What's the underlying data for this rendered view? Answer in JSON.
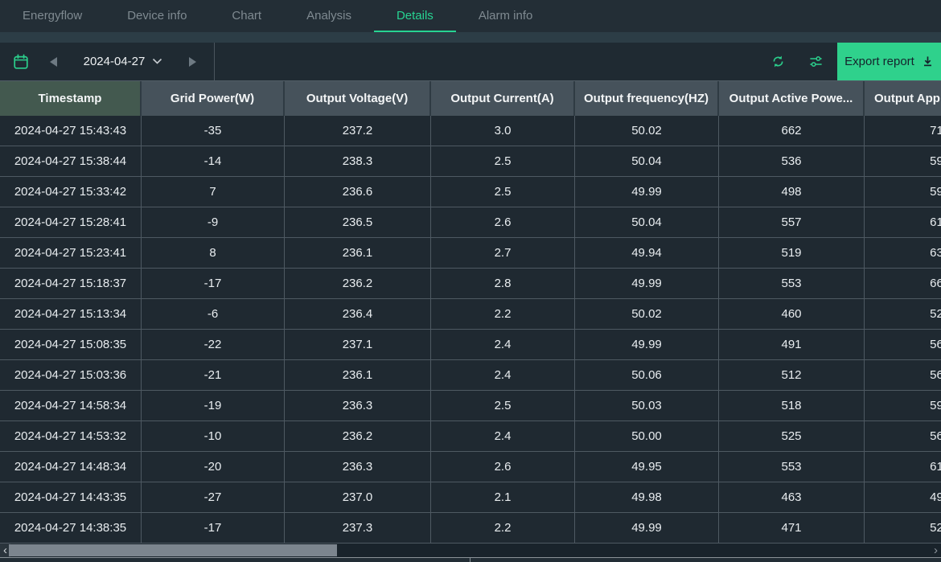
{
  "nav": {
    "tabs": [
      {
        "label": "Energyflow",
        "active": false
      },
      {
        "label": "Device info",
        "active": false
      },
      {
        "label": "Chart",
        "active": false
      },
      {
        "label": "Analysis",
        "active": false
      },
      {
        "label": "Details",
        "active": true
      },
      {
        "label": "Alarm info",
        "active": false
      }
    ]
  },
  "toolbar": {
    "date": "2024-04-27",
    "export_label": "Export report",
    "icons": [
      "calendar-icon",
      "previous-day-arrow",
      "chevron-down-icon",
      "next-day-arrow",
      "refresh-icon",
      "filter-icon",
      "download-icon"
    ]
  },
  "table": {
    "columns": [
      "Timestamp",
      "Grid Power(W)",
      "Output Voltage(V)",
      "Output Current(A)",
      "Output frequency(HZ)",
      "Output Active Powe...",
      "Output App"
    ],
    "rows": [
      [
        "2024-04-27 15:43:43",
        "-35",
        "237.2",
        "3.0",
        "50.02",
        "662",
        "71"
      ],
      [
        "2024-04-27 15:38:44",
        "-14",
        "238.3",
        "2.5",
        "50.04",
        "536",
        "59"
      ],
      [
        "2024-04-27 15:33:42",
        "7",
        "236.6",
        "2.5",
        "49.99",
        "498",
        "59"
      ],
      [
        "2024-04-27 15:28:41",
        "-9",
        "236.5",
        "2.6",
        "50.04",
        "557",
        "61"
      ],
      [
        "2024-04-27 15:23:41",
        "8",
        "236.1",
        "2.7",
        "49.94",
        "519",
        "63"
      ],
      [
        "2024-04-27 15:18:37",
        "-17",
        "236.2",
        "2.8",
        "49.99",
        "553",
        "66"
      ],
      [
        "2024-04-27 15:13:34",
        "-6",
        "236.4",
        "2.2",
        "50.02",
        "460",
        "52"
      ],
      [
        "2024-04-27 15:08:35",
        "-22",
        "237.1",
        "2.4",
        "49.99",
        "491",
        "56"
      ],
      [
        "2024-04-27 15:03:36",
        "-21",
        "236.1",
        "2.4",
        "50.06",
        "512",
        "56"
      ],
      [
        "2024-04-27 14:58:34",
        "-19",
        "236.3",
        "2.5",
        "50.03",
        "518",
        "59"
      ],
      [
        "2024-04-27 14:53:32",
        "-10",
        "236.2",
        "2.4",
        "50.00",
        "525",
        "56"
      ],
      [
        "2024-04-27 14:48:34",
        "-20",
        "236.3",
        "2.6",
        "49.95",
        "553",
        "61"
      ],
      [
        "2024-04-27 14:43:35",
        "-27",
        "237.0",
        "2.1",
        "49.98",
        "463",
        "49"
      ],
      [
        "2024-04-27 14:38:35",
        "-17",
        "237.3",
        "2.2",
        "49.99",
        "471",
        "52"
      ]
    ]
  },
  "scrollbar": {
    "left_arrow": "‹",
    "right_arrow": "›"
  },
  "colors": {
    "accent_green": "#2fd18c",
    "active_tab": "#27d492",
    "nav_bg": "#232e36",
    "toolbar_bg": "#1f2a32",
    "header_bg": "#46525b",
    "timestamp_header_bg": "#43594f",
    "row_bg": "#1f2931",
    "grid_line": "#4e5962",
    "export_text": "#15232c"
  }
}
